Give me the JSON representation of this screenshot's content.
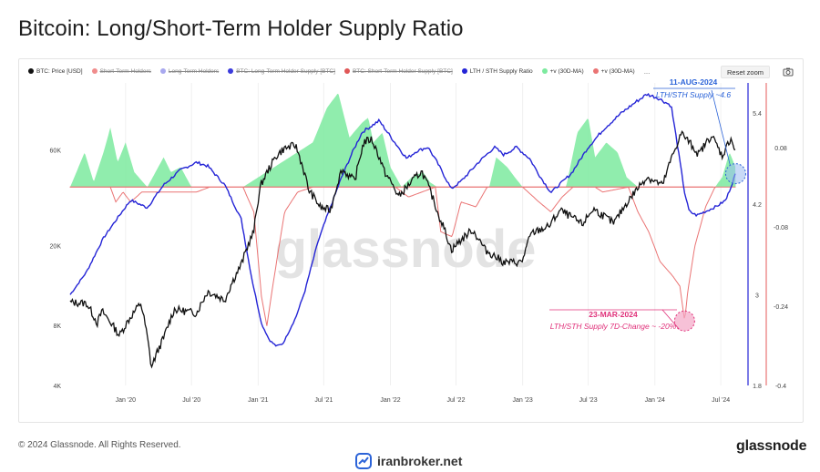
{
  "page": {
    "title": "Bitcoin: Long/Short-Term Holder Supply Ratio",
    "copyright": "© 2024 Glassnode. All Rights Reserved.",
    "brand": "glassnode",
    "watermark_site": "iranbroker.net",
    "chart_watermark": "glassnode"
  },
  "toolbar": {
    "reset_zoom_label": "Reset zoom",
    "camera_icon": "camera-icon",
    "more_label": "..."
  },
  "colors": {
    "price": "#111111",
    "short_term": "#f08c8c",
    "long_term": "#a8a8ef",
    "lth_supply": "#3b3bdc",
    "sth_supply": "#e05757",
    "ratio": "#2424d6",
    "pos_change": "#7dea9f",
    "neg_change": "#ea7474",
    "callout_blue": "#2b63d8",
    "callout_pink": "#e0317a"
  },
  "chart_data": {
    "type": "line",
    "title": "Bitcoin: Long/Short-Term Holder Supply Ratio",
    "x_ticks": [
      "Jan '20",
      "Jul '20",
      "Jan '21",
      "Jul '21",
      "Jan '22",
      "Jul '22",
      "Jan '23",
      "Jul '23",
      "Jan '24",
      "Jul '24"
    ],
    "x_range": [
      "2019-08-01",
      "2024-08-25"
    ],
    "legend": [
      {
        "name": "BTC: Price [USD]",
        "color": "#111111",
        "hidden": false
      },
      {
        "name": "Short-Term Holders",
        "color": "#f08c8c",
        "hidden": true
      },
      {
        "name": "Long-Term Holders",
        "color": "#a8a8ef",
        "hidden": true
      },
      {
        "name": "BTC: Long-Term Holder Supply [BTC]",
        "color": "#3b3bdc",
        "hidden": true
      },
      {
        "name": "BTC: Short-Term Holder Supply [BTC]",
        "color": "#e05757",
        "hidden": true
      },
      {
        "name": "LTH / STH Supply Ratio",
        "color": "#2424d6",
        "hidden": false
      },
      {
        "name": "+v (30D-MA)",
        "color": "#7dea9f",
        "hidden": false
      },
      {
        "name": "+v (30D-MA)",
        "color": "#ea7474",
        "hidden": false
      }
    ],
    "axes": {
      "price": {
        "scale": "log",
        "range": [
          4000,
          130000
        ],
        "ticks": [
          {
            "value": 4000,
            "label": "4K"
          },
          {
            "value": 8000,
            "label": "8K"
          },
          {
            "value": 20000,
            "label": "20K"
          },
          {
            "value": 60000,
            "label": "60K"
          }
        ]
      },
      "ratio": {
        "scale": "linear",
        "range": [
          1.8,
          5.8
        ],
        "ticks": [
          {
            "value": 1.8,
            "label": "1.8"
          },
          {
            "value": 3,
            "label": "3"
          },
          {
            "value": 4.2,
            "label": "4.2"
          },
          {
            "value": 5.4,
            "label": "5.4"
          }
        ]
      },
      "change": {
        "scale": "linear",
        "range": [
          -0.4,
          0.21
        ],
        "ticks": [
          {
            "value": -0.4,
            "label": "-0.4"
          },
          {
            "value": -0.24,
            "label": "-0.24"
          },
          {
            "value": -0.08,
            "label": "-0.08"
          },
          {
            "value": 0.08,
            "label": "0.08"
          }
        ]
      }
    },
    "series": [
      {
        "name": "BTC: Price [USD]",
        "axis": "price",
        "points": [
          [
            "2019-08-01",
            10400
          ],
          [
            "2019-09-15",
            10300
          ],
          [
            "2019-10-15",
            8200
          ],
          [
            "2019-10-28",
            9400
          ],
          [
            "2019-12-15",
            7100
          ],
          [
            "2020-01-15",
            8800
          ],
          [
            "2020-02-12",
            10300
          ],
          [
            "2020-03-12",
            4900
          ],
          [
            "2020-04-15",
            6900
          ],
          [
            "2020-05-15",
            9600
          ],
          [
            "2020-07-15",
            9200
          ],
          [
            "2020-08-15",
            11800
          ],
          [
            "2020-10-01",
            10700
          ],
          [
            "2020-11-15",
            16000
          ],
          [
            "2020-12-20",
            23500
          ],
          [
            "2021-01-08",
            40000
          ],
          [
            "2021-02-20",
            56000
          ],
          [
            "2021-03-13",
            61000
          ],
          [
            "2021-04-14",
            63500
          ],
          [
            "2021-05-20",
            38000
          ],
          [
            "2021-06-22",
            31000
          ],
          [
            "2021-07-20",
            30000
          ],
          [
            "2021-08-20",
            48000
          ],
          [
            "2021-09-25",
            42000
          ],
          [
            "2021-10-20",
            66000
          ],
          [
            "2021-11-10",
            68000
          ],
          [
            "2021-12-15",
            47000
          ],
          [
            "2022-01-24",
            35000
          ],
          [
            "2022-03-28",
            47000
          ],
          [
            "2022-05-12",
            29000
          ],
          [
            "2022-06-18",
            19000
          ],
          [
            "2022-08-15",
            24000
          ],
          [
            "2022-09-20",
            19000
          ],
          [
            "2022-11-10",
            16500
          ],
          [
            "2022-12-30",
            16500
          ],
          [
            "2023-01-25",
            23000
          ],
          [
            "2023-03-15",
            25000
          ],
          [
            "2023-04-15",
            30000
          ],
          [
            "2023-06-15",
            25500
          ],
          [
            "2023-07-15",
            30500
          ],
          [
            "2023-09-10",
            25800
          ],
          [
            "2023-10-25",
            34500
          ],
          [
            "2023-12-10",
            44000
          ],
          [
            "2024-01-23",
            40000
          ],
          [
            "2024-02-28",
            62000
          ],
          [
            "2024-03-14",
            73000
          ],
          [
            "2024-05-01",
            57000
          ],
          [
            "2024-06-05",
            71000
          ],
          [
            "2024-07-05",
            56000
          ],
          [
            "2024-07-29",
            69000
          ],
          [
            "2024-08-11",
            58000
          ]
        ]
      },
      {
        "name": "LTH / STH Supply Ratio",
        "axis": "ratio",
        "points": [
          [
            "2019-08-01",
            3.0
          ],
          [
            "2019-09-15",
            3.3
          ],
          [
            "2019-11-01",
            3.75
          ],
          [
            "2019-12-15",
            4.05
          ],
          [
            "2020-01-15",
            4.25
          ],
          [
            "2020-03-01",
            4.15
          ],
          [
            "2020-04-15",
            4.45
          ],
          [
            "2020-06-01",
            4.65
          ],
          [
            "2020-07-15",
            4.75
          ],
          [
            "2020-08-15",
            4.7
          ],
          [
            "2020-10-01",
            4.45
          ],
          [
            "2020-11-15",
            4.0
          ],
          [
            "2020-12-15",
            3.2
          ],
          [
            "2021-01-10",
            2.62
          ],
          [
            "2021-02-01",
            2.4
          ],
          [
            "2021-02-20",
            2.32
          ],
          [
            "2021-03-10",
            2.35
          ],
          [
            "2021-04-15",
            2.7
          ],
          [
            "2021-05-10",
            3.05
          ],
          [
            "2021-06-15",
            3.7
          ],
          [
            "2021-07-15",
            4.1
          ],
          [
            "2021-08-15",
            4.5
          ],
          [
            "2021-09-15",
            4.85
          ],
          [
            "2021-10-15",
            5.15
          ],
          [
            "2021-12-01",
            5.3
          ],
          [
            "2022-01-15",
            5.0
          ],
          [
            "2022-02-15",
            4.8
          ],
          [
            "2022-03-15",
            4.9
          ],
          [
            "2022-04-15",
            4.95
          ],
          [
            "2022-05-10",
            4.75
          ],
          [
            "2022-06-18",
            4.4
          ],
          [
            "2022-07-15",
            4.5
          ],
          [
            "2022-09-01",
            4.75
          ],
          [
            "2022-10-15",
            4.95
          ],
          [
            "2022-11-10",
            4.85
          ],
          [
            "2022-12-15",
            4.95
          ],
          [
            "2023-01-20",
            4.8
          ],
          [
            "2023-02-20",
            4.55
          ],
          [
            "2023-03-20",
            4.35
          ],
          [
            "2023-05-15",
            4.6
          ],
          [
            "2023-07-01",
            4.95
          ],
          [
            "2023-08-15",
            5.2
          ],
          [
            "2023-09-30",
            5.4
          ],
          [
            "2023-11-10",
            5.55
          ],
          [
            "2023-12-10",
            5.65
          ],
          [
            "2024-01-10",
            5.6
          ],
          [
            "2024-02-15",
            5.5
          ],
          [
            "2024-03-01",
            5.05
          ],
          [
            "2024-03-23",
            4.35
          ],
          [
            "2024-04-05",
            4.1
          ],
          [
            "2024-04-25",
            4.05
          ],
          [
            "2024-05-20",
            4.1
          ],
          [
            "2024-06-20",
            4.17
          ],
          [
            "2024-07-15",
            4.25
          ],
          [
            "2024-08-11",
            4.6
          ]
        ]
      },
      {
        "name": "+v (30D-MA)",
        "axis": "change",
        "points": [
          [
            "2019-08-01",
            0.0
          ],
          [
            "2019-09-10",
            0.07
          ],
          [
            "2019-10-05",
            0.01
          ],
          [
            "2019-11-01",
            0.07
          ],
          [
            "2019-11-20",
            0.12
          ],
          [
            "2019-12-10",
            0.05
          ],
          [
            "2020-01-01",
            0.09
          ],
          [
            "2020-01-25",
            0.03
          ],
          [
            "2020-03-01",
            0.0
          ],
          [
            "2020-04-15",
            0.06
          ],
          [
            "2020-05-05",
            0.03
          ],
          [
            "2020-06-01",
            0.04
          ],
          [
            "2020-07-01",
            0.0
          ],
          [
            "2020-11-20",
            0.0
          ],
          [
            "2021-06-01",
            0.09
          ],
          [
            "2021-07-10",
            0.16
          ],
          [
            "2021-08-10",
            0.19
          ],
          [
            "2021-09-10",
            0.1
          ],
          [
            "2021-10-15",
            0.13
          ],
          [
            "2021-11-01",
            0.14
          ],
          [
            "2021-11-15",
            0.09
          ],
          [
            "2021-12-10",
            0.11
          ],
          [
            "2022-01-01",
            0.04
          ],
          [
            "2022-02-01",
            0.0
          ],
          [
            "2022-03-01",
            0.02
          ],
          [
            "2022-04-01",
            0.03
          ],
          [
            "2022-04-20",
            0.01
          ],
          [
            "2022-05-10",
            0.0
          ],
          [
            "2022-10-01",
            0.0
          ],
          [
            "2022-10-20",
            0.06
          ],
          [
            "2022-11-20",
            0.04
          ],
          [
            "2022-12-10",
            0.02
          ],
          [
            "2023-01-01",
            0.0
          ],
          [
            "2023-05-01",
            0.0
          ],
          [
            "2023-06-01",
            0.11
          ],
          [
            "2023-07-01",
            0.14
          ],
          [
            "2023-07-20",
            0.06
          ],
          [
            "2023-08-20",
            0.09
          ],
          [
            "2023-09-20",
            0.07
          ],
          [
            "2023-10-15",
            0.02
          ],
          [
            "2023-11-15",
            0.0
          ],
          [
            "2024-06-15",
            0.0
          ],
          [
            "2024-07-05",
            0.02
          ],
          [
            "2024-07-25",
            0.07
          ],
          [
            "2024-08-11",
            0.04
          ]
        ]
      },
      {
        "name": "+v (30D-MA) negative",
        "axis": "change",
        "points": [
          [
            "2019-08-01",
            0.0
          ],
          [
            "2019-11-20",
            0.0
          ],
          [
            "2019-12-05",
            -0.03
          ],
          [
            "2019-12-25",
            -0.01
          ],
          [
            "2020-01-15",
            -0.03
          ],
          [
            "2020-02-15",
            -0.01
          ],
          [
            "2020-07-15",
            -0.01
          ],
          [
            "2020-08-20",
            0.0
          ],
          [
            "2020-11-20",
            0.0
          ],
          [
            "2020-12-20",
            -0.05
          ],
          [
            "2021-01-10",
            -0.22
          ],
          [
            "2021-01-25",
            -0.28
          ],
          [
            "2021-02-10",
            -0.2
          ],
          [
            "2021-03-15",
            -0.05
          ],
          [
            "2021-04-20",
            -0.01
          ],
          [
            "2021-06-01",
            0.0
          ],
          [
            "2022-01-15",
            0.0
          ],
          [
            "2022-02-20",
            -0.02
          ],
          [
            "2022-05-05",
            0.0
          ],
          [
            "2022-05-20",
            -0.09
          ],
          [
            "2022-06-20",
            -0.1
          ],
          [
            "2022-07-15",
            -0.03
          ],
          [
            "2022-08-25",
            -0.04
          ],
          [
            "2022-09-25",
            0.0
          ],
          [
            "2023-01-01",
            0.0
          ],
          [
            "2023-02-15",
            -0.03
          ],
          [
            "2023-03-20",
            -0.05
          ],
          [
            "2023-04-20",
            -0.02
          ],
          [
            "2023-05-20",
            0.0
          ],
          [
            "2023-07-20",
            0.0
          ],
          [
            "2023-08-10",
            -0.01
          ],
          [
            "2023-10-20",
            0.0
          ],
          [
            "2023-11-15",
            -0.05
          ],
          [
            "2023-12-15",
            -0.09
          ],
          [
            "2024-01-15",
            -0.15
          ],
          [
            "2024-02-20",
            -0.18
          ],
          [
            "2024-03-10",
            -0.2
          ],
          [
            "2024-03-23",
            -0.27
          ],
          [
            "2024-04-01",
            -0.21
          ],
          [
            "2024-04-20",
            -0.12
          ],
          [
            "2024-05-20",
            -0.04
          ],
          [
            "2024-06-15",
            0.0
          ],
          [
            "2024-08-11",
            0.0
          ]
        ]
      }
    ],
    "annotations": [
      {
        "date": "11-AUG-2024",
        "text": "LTH/STH Supply ~4.6",
        "color": "#2b63d8"
      },
      {
        "date": "23-MAR-2024",
        "text": "LTH/STH Supply 7D-Change ~ -20%",
        "color": "#e0317a"
      }
    ]
  }
}
